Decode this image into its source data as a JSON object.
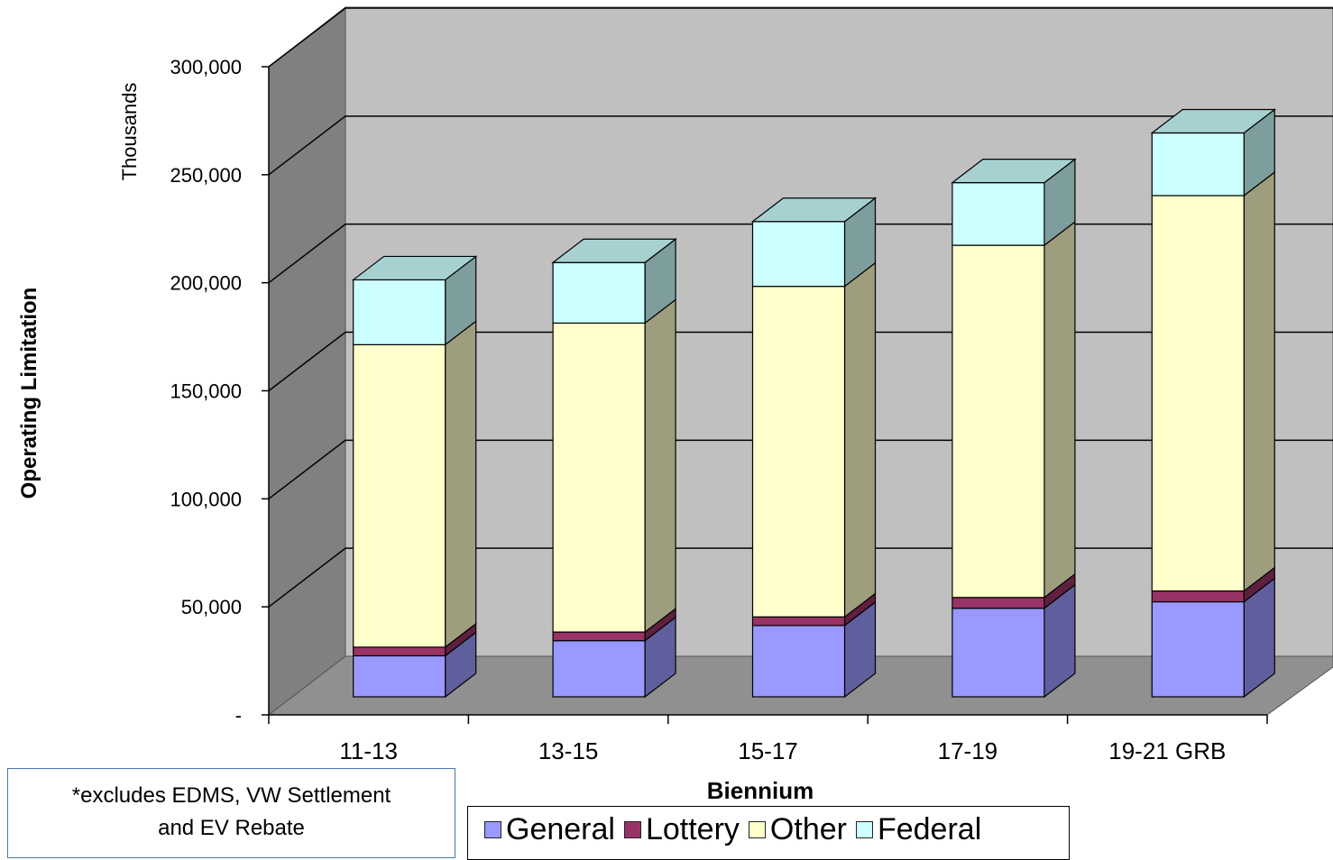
{
  "chart_data": {
    "type": "bar",
    "stacked": true,
    "three_d": true,
    "categories": [
      "11-13",
      "13-15",
      "15-17",
      "17-19",
      "19-21 GRB"
    ],
    "series": [
      {
        "name": "General",
        "values": [
          19000,
          26000,
          33000,
          41000,
          44000
        ],
        "color": "#9999ff"
      },
      {
        "name": "Lottery",
        "values": [
          4000,
          4000,
          4000,
          5000,
          5000
        ],
        "color": "#993366"
      },
      {
        "name": "Other",
        "values": [
          140000,
          143000,
          153000,
          163000,
          183000
        ],
        "color": "#ffffcc"
      },
      {
        "name": "Federal",
        "values": [
          30000,
          28000,
          30000,
          29000,
          29000
        ],
        "color": "#ccffff"
      }
    ],
    "ylabel": "Operating Limitation",
    "xlabel": "Biennium",
    "yunit": "Thousands",
    "ylim": [
      0,
      300000
    ],
    "yticks": [
      "-",
      "50,000",
      "100,000",
      "150,000",
      "200,000",
      "250,000",
      "300,000"
    ],
    "grid": true,
    "legend_position": "bottom"
  },
  "footnote": {
    "line1": "*excludes EDMS, VW Settlement",
    "line2": "and EV Rebate"
  },
  "colors": {
    "back_wall": "#c0c0c0",
    "side_wall": "#808080",
    "floor": "#909090",
    "note_border": "#4a76b0"
  }
}
